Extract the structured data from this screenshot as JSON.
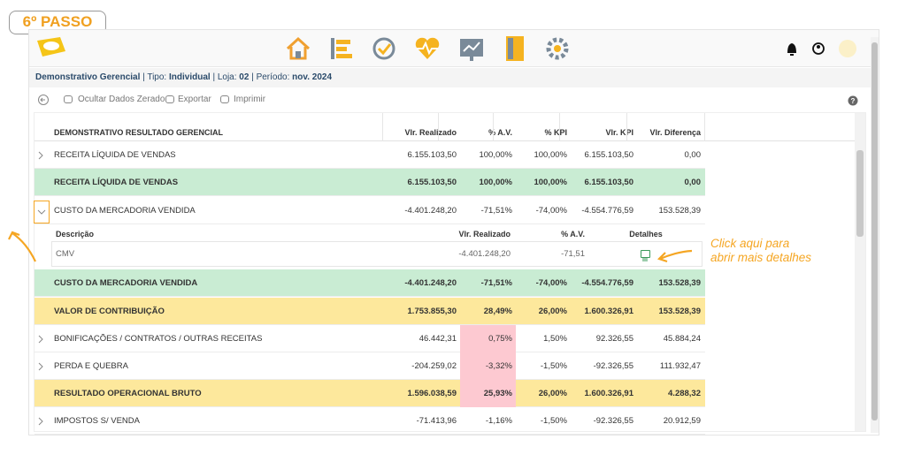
{
  "badge": "6º PASSO",
  "header": {
    "subtitle": [
      {
        "text": "Demonstrativo Gerencial",
        "bold": true
      },
      {
        "text": " | Tipo: "
      },
      {
        "text": "Individual",
        "bold": true
      },
      {
        "text": " | Loja: "
      },
      {
        "text": "02",
        "bold": true
      },
      {
        "text": " | Período: "
      },
      {
        "text": "nov. 2024",
        "bold": true
      }
    ]
  },
  "toolbar": [
    "Ocultar Dados Zerado",
    "Exportar",
    "Imprimir"
  ],
  "table": {
    "columns": [
      "DEMONSTRATIVO RESULTADO GERENCIAL",
      "Vlr. Realizado",
      "% A.V.",
      "% KPI",
      "Vlr. KPI",
      "Vlr. Diferença"
    ],
    "rows": [
      {
        "label": "RECEITA LÍQUIDA DE VENDAS",
        "values": [
          "6.155.103,50",
          "100,00%",
          "100,00%",
          "6.155.103,50",
          "0,00"
        ],
        "expander": "collapsed"
      },
      {
        "label": "RECEITA LÍQUIDA DE VENDAS",
        "values": [
          "6.155.103,50",
          "100,00%",
          "100,00%",
          "6.155.103,50",
          "0,00"
        ],
        "style": "green"
      },
      {
        "label": "CUSTO DA MERCADORIA VENDIDA",
        "values": [
          "-4.401.248,20",
          "-71,51%",
          "-74,00%",
          "-4.554.776,59",
          "153.528,39"
        ],
        "expander": "expanded"
      },
      {
        "label": "CUSTO DA MERCADORIA VENDIDA",
        "values": [
          "-4.401.248,20",
          "-71,51%",
          "-74,00%",
          "-4.554.776,59",
          "153.528,39"
        ],
        "style": "green"
      },
      {
        "label": "VALOR DE CONTRIBUIÇÃO",
        "values": [
          "1.753.855,30",
          "28,49%",
          "26,00%",
          "1.600.326,91",
          "153.528,39"
        ],
        "style": "yellow"
      },
      {
        "label": "BONIFICAÇÕES / CONTRATOS / OUTRAS RECEITAS",
        "values": [
          "46.442,31",
          "0,75%",
          "1,50%",
          "92.326,55",
          "45.884,24"
        ],
        "expander": "collapsed",
        "alert": true
      },
      {
        "label": "PERDA E QUEBRA",
        "values": [
          "-204.259,02",
          "-3,32%",
          "-1,50%",
          "-92.326,55",
          "111.932,47"
        ],
        "expander": "collapsed",
        "alert": true
      },
      {
        "label": "RESULTADO OPERACIONAL BRUTO",
        "values": [
          "1.596.038,59",
          "25,93%",
          "26,00%",
          "1.600.326,91",
          "4.288,32"
        ],
        "style": "yellow",
        "alert": true
      },
      {
        "label": "IMPOSTOS S/ VENDA",
        "values": [
          "-71.413,96",
          "-1,16%",
          "-1,50%",
          "-92.326,55",
          "20.912,59"
        ],
        "expander": "collapsed"
      }
    ]
  },
  "detail": {
    "columns": [
      "Descrição",
      "Vlr. Realizado",
      "% A.V.",
      "Detalhes"
    ],
    "rows": [
      {
        "label": "CMV",
        "values": [
          "-4.401.248,20",
          "-71,51"
        ]
      }
    ]
  },
  "annotation": [
    "Click aqui para",
    "abrir mais detalhes"
  ]
}
